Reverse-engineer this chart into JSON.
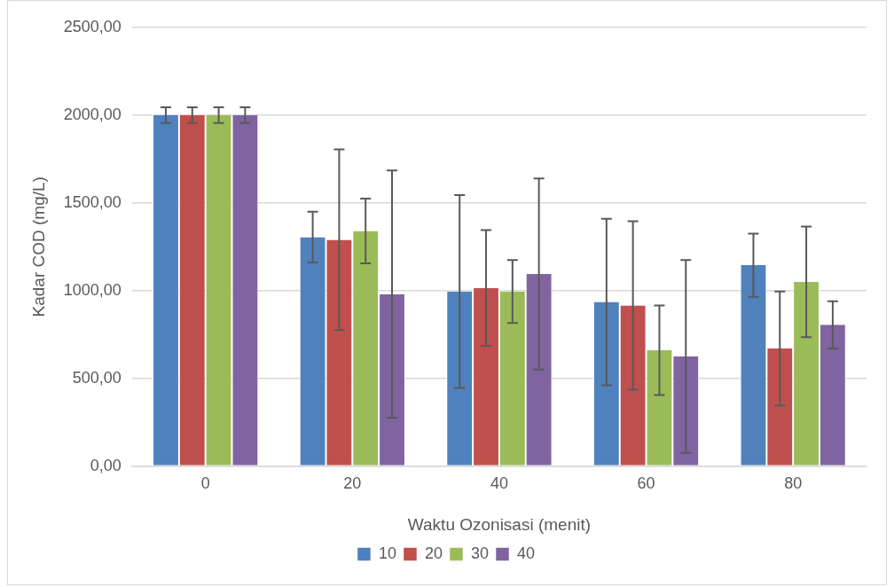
{
  "chart_data": {
    "type": "bar",
    "xlabel": "Waktu Ozonisasi (menit)",
    "ylabel": "Kadar COD (mg/L)",
    "categories": [
      "0",
      "20",
      "40",
      "60",
      "80"
    ],
    "series": [
      {
        "name": "10",
        "color": "#4f81bd",
        "values": [
          2000,
          1305,
          995,
          935,
          1145
        ],
        "errors": [
          45,
          145,
          550,
          475,
          180
        ]
      },
      {
        "name": "20",
        "color": "#c0504d",
        "values": [
          2000,
          1290,
          1015,
          915,
          670
        ],
        "errors": [
          45,
          515,
          330,
          480,
          325
        ]
      },
      {
        "name": "30",
        "color": "#9bbb59",
        "values": [
          2000,
          1340,
          995,
          660,
          1050
        ],
        "errors": [
          45,
          185,
          180,
          255,
          315
        ]
      },
      {
        "name": "40",
        "color": "#8064a2",
        "values": [
          2000,
          980,
          1095,
          625,
          805
        ],
        "errors": [
          45,
          705,
          545,
          550,
          135
        ]
      }
    ],
    "ylim": [
      0,
      2500
    ],
    "yticks": [
      {
        "value": 0,
        "label": "0,00"
      },
      {
        "value": 500,
        "label": "500,00"
      },
      {
        "value": 1000,
        "label": "1000,00"
      },
      {
        "value": 1500,
        "label": "1500,00"
      },
      {
        "value": 2000,
        "label": "2000,00"
      },
      {
        "value": 2500,
        "label": "2500,00"
      }
    ],
    "grid": "y",
    "legend": "bottom"
  }
}
